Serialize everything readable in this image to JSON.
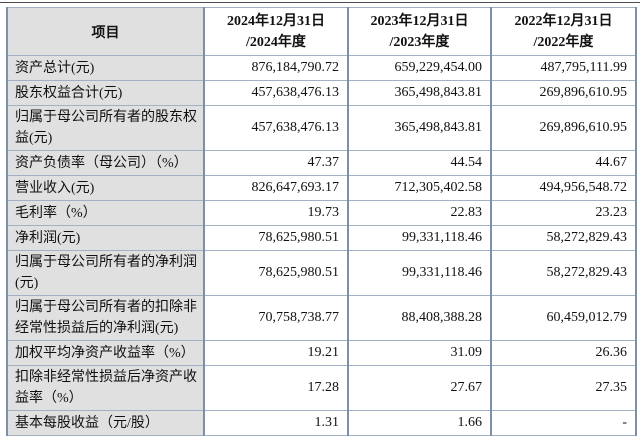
{
  "table": {
    "header": {
      "item_label": "项目",
      "periods": [
        {
          "line1": "2024年12月31日",
          "line2": "/2024年度"
        },
        {
          "line1": "2023年12月31日",
          "line2": "/2023年度"
        },
        {
          "line1": "2022年12月31日",
          "line2": "/2022年度"
        }
      ]
    },
    "rows": [
      {
        "label": "资产总计(元)",
        "values": [
          "876,184,790.72",
          "659,229,454.00",
          "487,795,111.99"
        ]
      },
      {
        "label": "股东权益合计(元)",
        "values": [
          "457,638,476.13",
          "365,498,843.81",
          "269,896,610.95"
        ]
      },
      {
        "label": "归属于母公司所有者的股东权益(元)",
        "values": [
          "457,638,476.13",
          "365,498,843.81",
          "269,896,610.95"
        ]
      },
      {
        "label": "资产负债率（母公司）（%）",
        "values": [
          "47.37",
          "44.54",
          "44.67"
        ]
      },
      {
        "label": "营业收入(元)",
        "values": [
          "826,647,693.17",
          "712,305,402.58",
          "494,956,548.72"
        ]
      },
      {
        "label": "毛利率（%）",
        "values": [
          "19.73",
          "22.83",
          "23.23"
        ]
      },
      {
        "label": "净利润(元)",
        "values": [
          "78,625,980.51",
          "99,331,118.46",
          "58,272,829.43"
        ]
      },
      {
        "label": "归属于母公司所有者的净利润(元)",
        "values": [
          "78,625,980.51",
          "99,331,118.46",
          "58,272,829.43"
        ]
      },
      {
        "label": "归属于母公司所有者的扣除非经常性损益后的净利润(元)",
        "values": [
          "70,758,738.77",
          "88,408,388.28",
          "60,459,012.79"
        ]
      },
      {
        "label": "加权平均净资产收益率（%）",
        "values": [
          "19.21",
          "31.09",
          "26.36"
        ]
      },
      {
        "label": "扣除非经常性损益后净资产收益率（%）",
        "values": [
          "17.28",
          "27.67",
          "27.35"
        ]
      },
      {
        "label": "基本每股收益（元/股）",
        "values": [
          "1.31",
          "1.66",
          "-"
        ]
      }
    ]
  },
  "colors": {
    "border_vertical": "#7b90a7",
    "border_horizontal": "#9fb1c3",
    "label_background": "#e0e0e0",
    "cell_background": "#ffffff",
    "text": "#111111",
    "top_rule": "#4d4d4d"
  }
}
